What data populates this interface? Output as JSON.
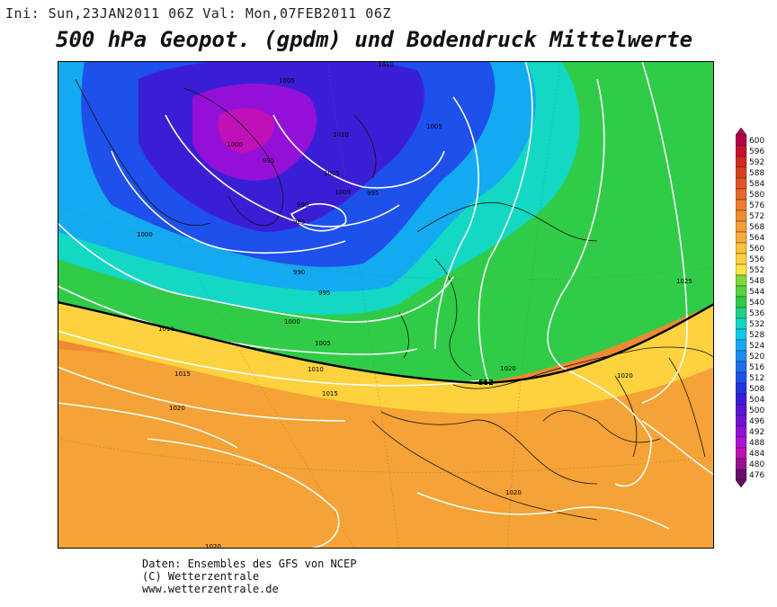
{
  "header": {
    "run_info": "Ini: Sun,23JAN2011 06Z Val: Mon,07FEB2011 06Z",
    "title": "500 hPa Geopot. (gpdm) und Bodendruck Mittelwerte"
  },
  "legend": {
    "levels": [
      "600",
      "596",
      "592",
      "588",
      "584",
      "580",
      "576",
      "572",
      "568",
      "564",
      "560",
      "556",
      "552",
      "548",
      "544",
      "540",
      "536",
      "532",
      "528",
      "524",
      "520",
      "516",
      "512",
      "508",
      "504",
      "500",
      "496",
      "492",
      "488",
      "484",
      "480",
      "476"
    ],
    "colors": [
      "#b4004a",
      "#c8102e",
      "#d2281e",
      "#d84020",
      "#e05524",
      "#e8682a",
      "#ee7b2e",
      "#f28c30",
      "#f59c34",
      "#f8ad38",
      "#fbc03c",
      "#fdd23e",
      "#fee43e",
      "#7ed93a",
      "#55d23c",
      "#30cc48",
      "#1ed28a",
      "#12d8c4",
      "#10c8ec",
      "#14aaf0",
      "#1a8cf2",
      "#1c6ef0",
      "#1e50ec",
      "#2234e0",
      "#3a1ed6",
      "#5814d4",
      "#7410d6",
      "#9410d8",
      "#b010d4",
      "#c010b8",
      "#9a1090",
      "#6a0a6a"
    ]
  },
  "map": {
    "isobar_labels": [
      "1010",
      "1005",
      "1010",
      "1005",
      "1000",
      "995",
      "1005",
      "1000",
      "995",
      "990",
      "985",
      "1000",
      "990",
      "995",
      "1000",
      "1005",
      "1010",
      "1015",
      "1020",
      "1015",
      "1010",
      "1020",
      "1025",
      "1020",
      "1020",
      "1020",
      "552"
    ]
  },
  "credits": {
    "line1": "Daten: Ensembles des GFS von NCEP",
    "line2": "(C) Wetterzentrale",
    "line3": "www.wetterzentrale.de"
  }
}
